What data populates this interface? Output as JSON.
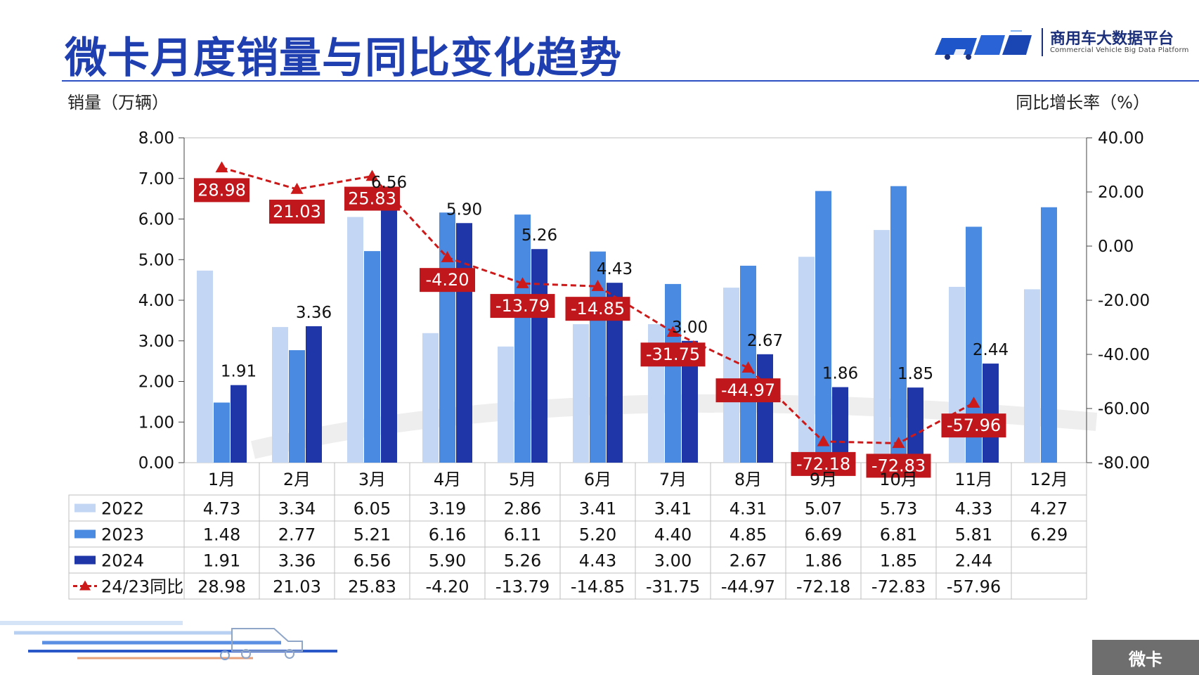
{
  "header": {
    "title": "微卡月度销量与同比变化趋势",
    "logo_cn": "商用车大数据平台",
    "logo_en": "Commercial Vehicle Big Data Platform"
  },
  "corner_tag": "微卡",
  "colors": {
    "s2022": "#c3d6f3",
    "s2023": "#4a8ae0",
    "s2024": "#1f36a8",
    "yoy": "#cc1a1a",
    "title": "#1f3fb0"
  },
  "chart_data": {
    "type": "bar",
    "categories": [
      "1月",
      "2月",
      "3月",
      "4月",
      "5月",
      "6月",
      "7月",
      "8月",
      "9月",
      "10月",
      "11月",
      "12月"
    ],
    "ylabel_left": "销量（万辆）",
    "ylabel_right": "同比增长率（%）",
    "ylim_left": [
      0,
      8
    ],
    "ylim_right": [
      -80,
      40
    ],
    "yticks_left": [
      "0.00",
      "1.00",
      "2.00",
      "3.00",
      "4.00",
      "5.00",
      "6.00",
      "7.00",
      "8.00"
    ],
    "yticks_right": [
      "-80.00",
      "-60.00",
      "-40.00",
      "-20.00",
      "0.00",
      "20.00",
      "40.00"
    ],
    "series": [
      {
        "name": "2022",
        "type": "bar",
        "values": [
          4.73,
          3.34,
          6.05,
          3.19,
          2.86,
          3.41,
          3.41,
          4.31,
          5.07,
          5.73,
          4.33,
          4.27
        ]
      },
      {
        "name": "2023",
        "type": "bar",
        "values": [
          1.48,
          2.77,
          5.21,
          6.16,
          6.11,
          5.2,
          4.4,
          4.85,
          6.69,
          6.81,
          5.81,
          6.29
        ]
      },
      {
        "name": "2024",
        "type": "bar",
        "values": [
          1.91,
          3.36,
          6.56,
          5.9,
          5.26,
          4.43,
          3.0,
          2.67,
          1.86,
          1.85,
          2.44,
          null
        ]
      },
      {
        "name": "24/23同比",
        "type": "line",
        "axis": "right",
        "values": [
          28.98,
          21.03,
          25.83,
          -4.2,
          -13.79,
          -14.85,
          -31.75,
          -44.97,
          -72.18,
          -72.83,
          -57.96,
          null
        ]
      }
    ],
    "table": {
      "rows": [
        {
          "label": "2022",
          "cells": [
            "4.73",
            "3.34",
            "6.05",
            "3.19",
            "2.86",
            "3.41",
            "3.41",
            "4.31",
            "5.07",
            "5.73",
            "4.33",
            "4.27"
          ]
        },
        {
          "label": "2023",
          "cells": [
            "1.48",
            "2.77",
            "5.21",
            "6.16",
            "6.11",
            "5.20",
            "4.40",
            "4.85",
            "6.69",
            "6.81",
            "5.81",
            "6.29"
          ]
        },
        {
          "label": "2024",
          "cells": [
            "1.91",
            "3.36",
            "6.56",
            "5.90",
            "5.26",
            "4.43",
            "3.00",
            "2.67",
            "1.86",
            "1.85",
            "2.44",
            ""
          ]
        },
        {
          "label": "24/23同比",
          "cells": [
            "28.98",
            "21.03",
            "25.83",
            "-4.20",
            "-13.79",
            "-14.85",
            "-31.75",
            "-44.97",
            "-72.18",
            "-72.83",
            "-57.96",
            ""
          ]
        }
      ]
    },
    "data_labels_2024": [
      "1.91",
      "3.36",
      "6.56",
      "5.90",
      "5.26",
      "4.43",
      "3.00",
      "2.67",
      "1.86",
      "1.85",
      "2.44",
      ""
    ],
    "data_labels_yoy": [
      "28.98",
      "21.03",
      "25.83",
      "-4.20",
      "-13.79",
      "-14.85",
      "-31.75",
      "-44.97",
      "-72.18",
      "-72.83",
      "-57.96",
      ""
    ],
    "grid": false,
    "legend": "table-left"
  }
}
